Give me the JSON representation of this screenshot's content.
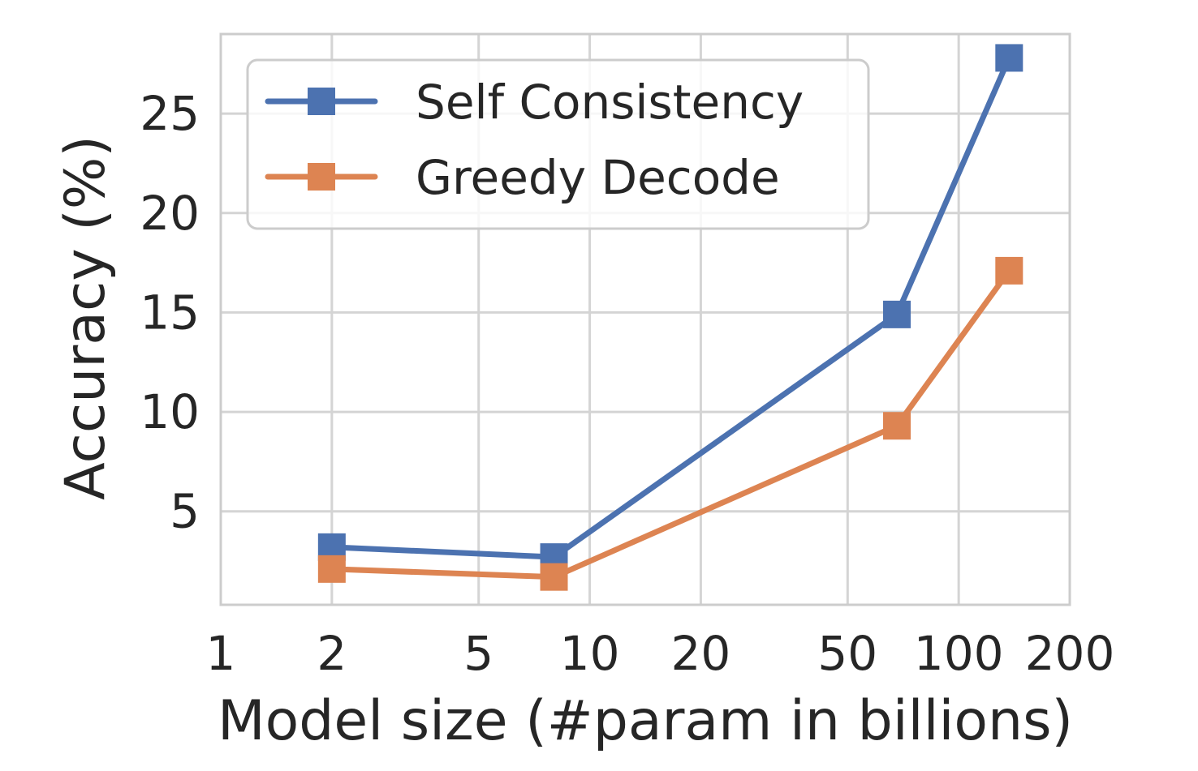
{
  "chart_data": {
    "type": "line",
    "title": "",
    "xlabel": "Model size (#param in billions)",
    "ylabel": "Accuracy (%)",
    "xscale": "log",
    "xlim": [
      1,
      200
    ],
    "ylim": [
      0.3,
      29
    ],
    "x_ticks": [
      1,
      2,
      5,
      10,
      20,
      50,
      100,
      200
    ],
    "x_tick_labels": [
      "1",
      "2",
      "5",
      "10",
      "20",
      "50",
      "100",
      "200"
    ],
    "y_ticks": [
      5,
      10,
      15,
      20,
      25
    ],
    "y_tick_labels": [
      "5",
      "10",
      "15",
      "20",
      "25"
    ],
    "grid": true,
    "legend_position": "top-left",
    "x": [
      2,
      8,
      68,
      137
    ],
    "series": [
      {
        "name": "Self Consistency",
        "color": "#4c72b0",
        "marker": "square",
        "values": [
          3.2,
          2.7,
          14.9,
          27.8
        ]
      },
      {
        "name": "Greedy Decode",
        "color": "#dd8452",
        "marker": "square",
        "values": [
          2.1,
          1.7,
          9.3,
          17.1
        ]
      }
    ]
  }
}
